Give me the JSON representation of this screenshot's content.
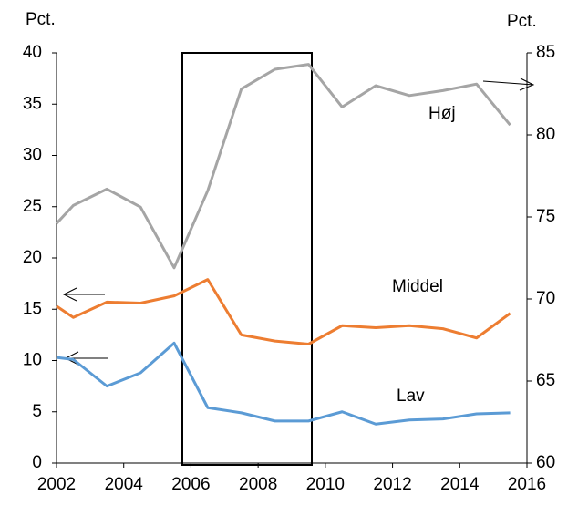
{
  "chart_data": {
    "type": "line",
    "y_label": "Pct.",
    "y2_label": "Pct.",
    "x": [
      2002,
      2002.5,
      2003.5,
      2004.5,
      2005.5,
      2006.5,
      2007.5,
      2008.5,
      2009.5,
      2010.5,
      2011.5,
      2012.5,
      2013.5,
      2014.5,
      2015.5
    ],
    "series": [
      {
        "name": "Høj",
        "color": "#a5a5a5",
        "axis": "y2",
        "values": [
          74.6,
          75.7,
          76.7,
          75.6,
          71.9,
          76.6,
          82.8,
          84.0,
          84.3,
          81.7,
          83.0,
          82.4,
          82.7,
          83.1,
          80.6
        ]
      },
      {
        "name": "Middel",
        "color": "#ed7d31",
        "values": [
          15.3,
          14.2,
          15.7,
          15.6,
          16.3,
          17.9,
          12.5,
          11.9,
          11.6,
          13.4,
          13.2,
          13.4,
          13.1,
          12.2,
          14.6
        ]
      },
      {
        "name": "Lav",
        "color": "#5b9bd5",
        "values": [
          10.3,
          10.1,
          7.5,
          8.8,
          11.7,
          5.4,
          4.9,
          4.1,
          4.1,
          5.0,
          3.8,
          4.2,
          4.3,
          4.8,
          4.9
        ]
      }
    ],
    "xlim": [
      2002,
      2016
    ],
    "xticks": [
      2002,
      2004,
      2006,
      2008,
      2010,
      2012,
      2014,
      2016
    ],
    "ylim": [
      0,
      40
    ],
    "yticks": [
      0,
      5,
      10,
      15,
      20,
      25,
      30,
      35,
      40
    ],
    "y2lim": [
      60,
      85
    ],
    "y2ticks": [
      60,
      65,
      70,
      75,
      80,
      85
    ]
  }
}
